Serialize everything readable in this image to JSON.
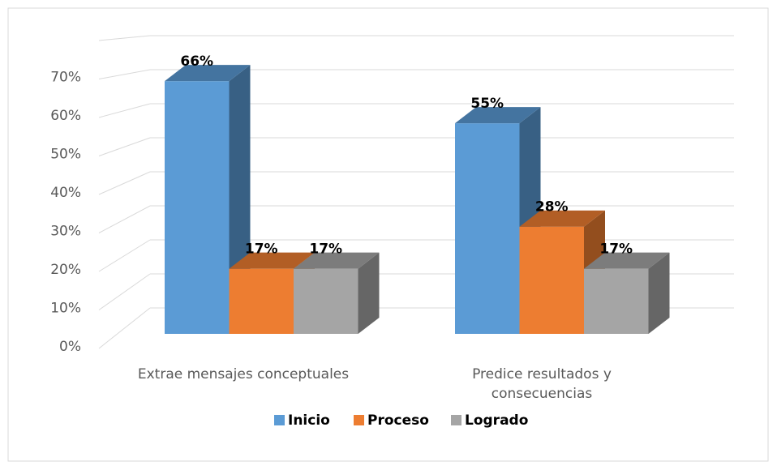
{
  "chart_data": {
    "type": "bar3d",
    "categories": [
      "Extrae mensajes conceptuales",
      "Predice resultados y consecuencias"
    ],
    "series": [
      {
        "name": "Inicio",
        "color": "#5b9bd5",
        "values": [
          66,
          55
        ],
        "value_labels": [
          "66%",
          "55%"
        ]
      },
      {
        "name": "Proceso",
        "color": "#ed7d31",
        "values": [
          17,
          28
        ],
        "value_labels": [
          "17%",
          "28%"
        ]
      },
      {
        "name": "Logrado",
        "color": "#a5a5a5",
        "values": [
          17,
          17
        ],
        "value_labels": [
          "17%",
          "17%"
        ]
      }
    ],
    "ylim": [
      0,
      80
    ],
    "yticks": [
      {
        "value": 0,
        "label": "0%"
      },
      {
        "value": 10,
        "label": "10%"
      },
      {
        "value": 20,
        "label": "20%"
      },
      {
        "value": 30,
        "label": "30%"
      },
      {
        "value": 40,
        "label": "40%"
      },
      {
        "value": 50,
        "label": "50%"
      },
      {
        "value": 60,
        "label": "60%"
      },
      {
        "value": 70,
        "label": "70%"
      }
    ],
    "grid": true,
    "legend": "bottom"
  }
}
